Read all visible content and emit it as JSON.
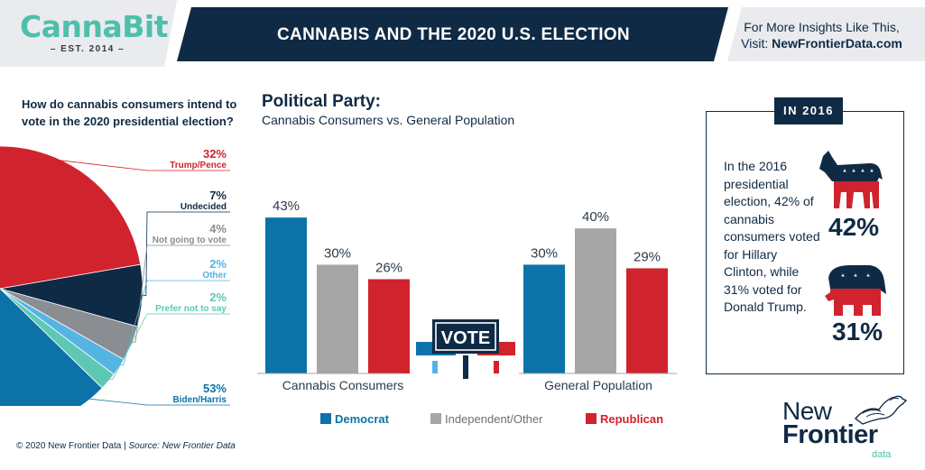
{
  "header": {
    "brand": "CannaBit",
    "brand_tagline": "– EST. 2014 –",
    "title": "CANNABIS AND THE 2020 U.S. ELECTION",
    "insights_line1": "For More Insights Like This,",
    "insights_label": "Visit: ",
    "insights_url": "NewFrontierData.com"
  },
  "colors": {
    "democrat": "#0c72a8",
    "independent": "#a6a6a6",
    "republican": "#d1232d",
    "navy": "#0f2a44",
    "teal": "#4dbfab"
  },
  "chart_data": [
    {
      "type": "pie",
      "title": "How do cannabis consumers intend to vote in the 2020 presidential election?",
      "slices": [
        {
          "label": "Trump/Pence",
          "value": 32,
          "display": "32%",
          "color": "#d1232d"
        },
        {
          "label": "Undecided",
          "value": 7,
          "display": "7%",
          "color": "#0f2a44"
        },
        {
          "label": "Not going to vote",
          "value": 4,
          "display": "4%",
          "color": "#8a8d91"
        },
        {
          "label": "Other",
          "value": 2,
          "display": "2%",
          "color": "#56b4e3"
        },
        {
          "label": "Prefer not to say",
          "value": 2,
          "display": "2%",
          "color": "#5dc9b5"
        },
        {
          "label": "Biden/Harris",
          "value": 53,
          "display": "53%",
          "color": "#0c72a8"
        }
      ]
    },
    {
      "type": "bar",
      "title": "Political Party:",
      "subtitle": "Cannabis Consumers vs. General Population",
      "categories": [
        "Cannabis Consumers",
        "General Population"
      ],
      "series": [
        {
          "name": "Democrat",
          "values": [
            43,
            30
          ],
          "color": "#0c72a8"
        },
        {
          "name": "Independent/Other",
          "values": [
            30,
            40
          ],
          "color": "#a6a6a6"
        },
        {
          "name": "Republican",
          "values": [
            26,
            29
          ],
          "color": "#d1232d"
        }
      ],
      "ylim": [
        0,
        50
      ],
      "value_suffix": "%",
      "legend_position": "bottom",
      "sign_text": "VOTE"
    }
  ],
  "box_2016": {
    "badge": "IN 2016",
    "text": "In the 2016 presidential election, 42% of cannabis consumers voted for Hillary Clinton, while 31% voted for Donald Trump.",
    "dem_pct": "42%",
    "rep_pct": "31%",
    "dem_icon": "donkey-icon",
    "rep_icon": "elephant-icon"
  },
  "footer": {
    "copyright": "© 2020  New Frontier Data | ",
    "source": "Source: New Frontier Data"
  },
  "nfd_logo": {
    "line1": "New",
    "line2": "Frontier",
    "line3": "data",
    "icon": "horse-icon"
  }
}
